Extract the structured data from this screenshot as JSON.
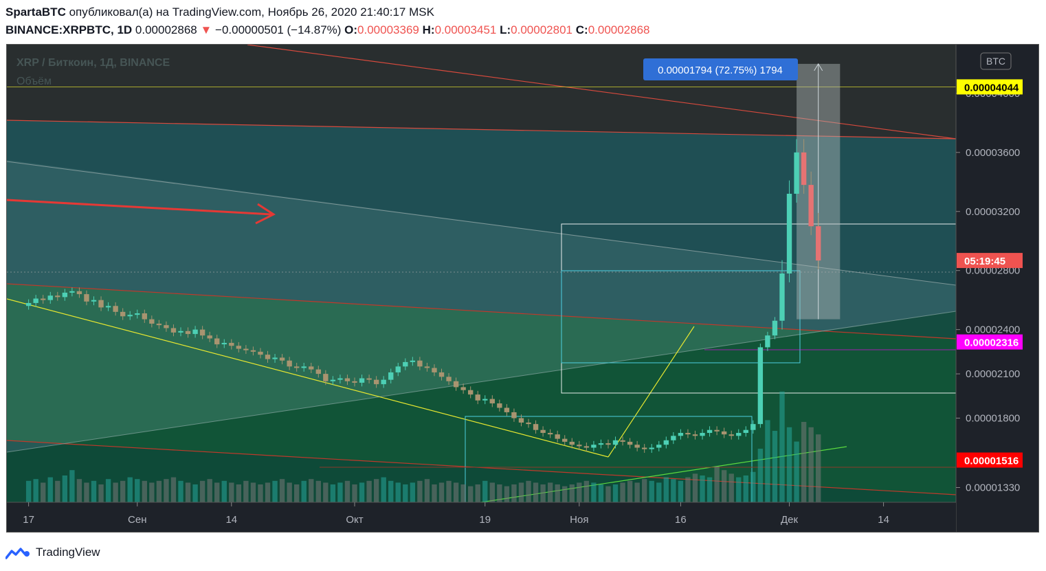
{
  "header": {
    "author": "SpartaBTC",
    "published": "опубликовал(а) на TradingView.com, Ноябрь 26, 2020 21:40:17 MSK",
    "symbol": "BINANCE:XRPBTC, 1D",
    "last": "0.00002868",
    "change_arrow": "▼",
    "change": "−0.00000501 (−14.87%)",
    "o_label": "O:",
    "o": "0.00003369",
    "h_label": "H:",
    "h": "0.00003451",
    "l_label": "L:",
    "l": "0.00002801",
    "c_label": "C:",
    "c": "0.00002868"
  },
  "legend": {
    "title": "XRP / Биткоин, 1Д, BINANCE",
    "volume": "Объём"
  },
  "currency_badge": "BTC",
  "measure_label": "0.00001794 (72.75%) 1794",
  "price_labels": [
    {
      "text": "0.00004044",
      "color": "#ffff00",
      "fg": "#000000",
      "price": 4044
    },
    {
      "text": "05:19:45",
      "color": "#ef5350",
      "fg": "#ffffff",
      "price": 2868
    },
    {
      "text": "0.00002316",
      "color": "#ff00ff",
      "fg": "#ffffff",
      "price": 2316
    },
    {
      "text": "0.00001516",
      "color": "#ff0000",
      "fg": "#ffffff",
      "price": 1516
    }
  ],
  "footer": {
    "brand": "TradingView"
  },
  "chart_data": {
    "type": "candlestick",
    "y_ticks": [
      "0.00004000",
      "0.00003600",
      "0.00003200",
      "0.00002800",
      "0.00002400",
      "0.00002100",
      "0.00001800",
      "0.00001330"
    ],
    "y_tick_values": [
      4000,
      3600,
      3200,
      2800,
      2400,
      2100,
      1800,
      1330
    ],
    "x_ticks": [
      "17",
      "Сен",
      "14",
      "Окт",
      "19",
      "Ноя",
      "16",
      "Дек",
      "14"
    ],
    "x_tick_days": [
      0,
      15,
      28,
      45,
      63,
      76,
      90,
      105,
      118
    ],
    "ylim": [
      1230,
      4330
    ],
    "xlim": [
      -3,
      128
    ],
    "candles_close": [
      2580,
      2610,
      2600,
      2630,
      2620,
      2650,
      2660,
      2640,
      2590,
      2600,
      2550,
      2560,
      2520,
      2490,
      2500,
      2510,
      2470,
      2440,
      2430,
      2410,
      2380,
      2390,
      2370,
      2400,
      2360,
      2340,
      2300,
      2310,
      2290,
      2270,
      2260,
      2250,
      2230,
      2200,
      2210,
      2190,
      2150,
      2140,
      2150,
      2130,
      2100,
      2050,
      2060,
      2070,
      2050,
      2040,
      2070,
      2060,
      2030,
      2060,
      2110,
      2150,
      2180,
      2190,
      2150,
      2140,
      2110,
      2080,
      2050,
      2010,
      1990,
      1960,
      1920,
      1930,
      1900,
      1870,
      1840,
      1800,
      1770,
      1760,
      1720,
      1700,
      1690,
      1660,
      1640,
      1620,
      1610,
      1600,
      1620,
      1630,
      1620,
      1650,
      1640,
      1620,
      1600,
      1590,
      1600,
      1620,
      1650,
      1680,
      1700,
      1690,
      1680,
      1700,
      1720,
      1710,
      1690,
      1680,
      1700,
      1720,
      1760,
      2280,
      2360,
      2460,
      2780,
      3320,
      3600,
      3380,
      3100,
      2868
    ],
    "volumes": [
      12,
      13,
      11,
      14,
      12,
      15,
      18,
      13,
      11,
      12,
      10,
      13,
      11,
      12,
      14,
      13,
      12,
      11,
      12,
      13,
      14,
      12,
      11,
      10,
      12,
      13,
      11,
      12,
      11,
      10,
      12,
      11,
      10,
      11,
      12,
      13,
      11,
      10,
      12,
      13,
      12,
      11,
      10,
      11,
      12,
      10,
      11,
      12,
      13,
      14,
      12,
      11,
      10,
      11,
      12,
      13,
      10,
      11,
      12,
      11,
      10,
      9,
      10,
      12,
      11,
      10,
      9,
      10,
      11,
      12,
      11,
      10,
      11,
      10,
      9,
      10,
      11,
      12,
      11,
      10,
      9,
      10,
      11,
      12,
      11,
      13,
      12,
      11,
      14,
      13,
      12,
      14,
      16,
      15,
      14,
      20,
      18,
      16,
      14,
      15,
      17,
      30,
      46,
      40,
      62,
      42,
      34,
      45,
      42,
      38
    ],
    "levels": [
      4044,
      2316,
      1516
    ],
    "measure": {
      "from_day": 106,
      "to_day": 112,
      "low": 2470,
      "high": 4200
    }
  }
}
